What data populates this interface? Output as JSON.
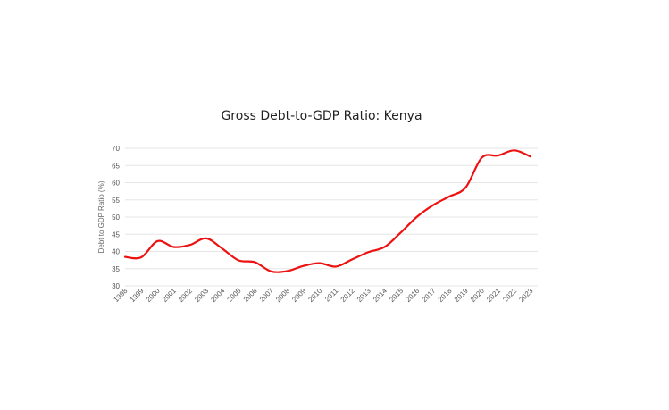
{
  "chart_data": {
    "type": "line",
    "title": "Gross Debt-to-GDP Ratio: Kenya",
    "xlabel": "",
    "ylabel": "Debt to GDP Ratio (%)",
    "ylim": [
      30,
      70
    ],
    "yticks": [
      30,
      35,
      40,
      45,
      50,
      55,
      60,
      65,
      70
    ],
    "grid": true,
    "legend": "none",
    "x": [
      "1998",
      "1999",
      "2000",
      "2001",
      "2002",
      "2003",
      "2004",
      "2005",
      "2006",
      "2007",
      "2008",
      "2009",
      "2010",
      "2011",
      "2012",
      "2013",
      "2014",
      "2015",
      "2016",
      "2017",
      "2018",
      "2019",
      "2020",
      "2021",
      "2022",
      "2023"
    ],
    "series": [
      {
        "color": "#ee1111",
        "values": [
          38.4,
          38.3,
          43.0,
          41.3,
          41.9,
          43.8,
          40.8,
          37.4,
          36.9,
          34.2,
          34.3,
          35.8,
          36.6,
          35.6,
          37.7,
          39.8,
          41.3,
          45.5,
          50.1,
          53.5,
          56.0,
          58.6,
          67.3,
          67.9,
          69.4,
          67.6
        ]
      }
    ]
  }
}
